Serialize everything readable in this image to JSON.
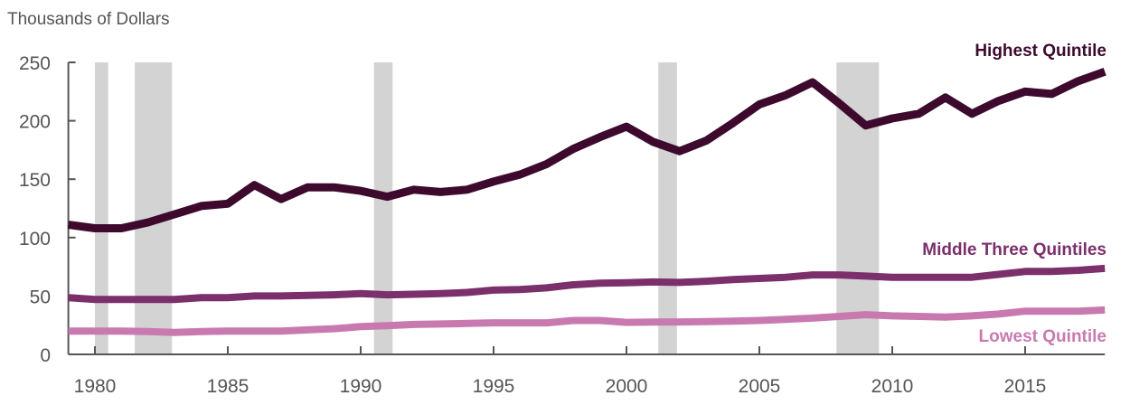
{
  "chart_data": {
    "type": "line",
    "ylabel": "Thousands of Dollars",
    "xlim": [
      1979,
      2018
    ],
    "ylim": [
      0,
      250
    ],
    "yticks": [
      0,
      50,
      100,
      150,
      200,
      250
    ],
    "xticks": [
      1980,
      1985,
      1990,
      1995,
      2000,
      2005,
      2010,
      2015
    ],
    "recessions": [
      [
        1980.0,
        1980.5
      ],
      [
        1981.5,
        1982.9
      ],
      [
        1990.5,
        1991.2
      ],
      [
        2001.2,
        2001.9
      ],
      [
        2007.9,
        2009.5
      ]
    ],
    "x": [
      1979,
      1980,
      1981,
      1982,
      1983,
      1984,
      1985,
      1986,
      1987,
      1988,
      1989,
      1990,
      1991,
      1992,
      1993,
      1994,
      1995,
      1996,
      1997,
      1998,
      1999,
      2000,
      2001,
      2002,
      2003,
      2004,
      2005,
      2006,
      2007,
      2008,
      2009,
      2010,
      2011,
      2012,
      2013,
      2014,
      2015,
      2016,
      2017,
      2018
    ],
    "series": [
      {
        "name": "Highest Quintile",
        "color": "#3d0a2e",
        "values": [
          111,
          108,
          108,
          113,
          120,
          127,
          129,
          145,
          133,
          143,
          143,
          140,
          135,
          141,
          139,
          141,
          148,
          154,
          163,
          176,
          186,
          195,
          182,
          174,
          183,
          198,
          214,
          222,
          233,
          215,
          196,
          202,
          206,
          220,
          206,
          217,
          225,
          223,
          234,
          242
        ]
      },
      {
        "name": "Middle Three Quintiles",
        "color": "#7b2f6b",
        "values": [
          48.6,
          47,
          47,
          47,
          47,
          48.6,
          48.6,
          50,
          50,
          50.5,
          51,
          52,
          51,
          51.5,
          52,
          53,
          55,
          55.5,
          57,
          59.6,
          61,
          61.4,
          62,
          61.6,
          62.6,
          64,
          65,
          66,
          68,
          68,
          67,
          66,
          66,
          66,
          66,
          68.5,
          71,
          71,
          72,
          73.6
        ]
      },
      {
        "name": "Lowest Quintile",
        "color": "#c87ab0",
        "values": [
          20,
          20,
          20,
          19.5,
          18.7,
          19.5,
          20,
          20,
          20,
          21,
          22,
          23.8,
          24.5,
          25.6,
          26,
          26.5,
          27,
          27,
          27,
          29,
          29,
          27.4,
          27.6,
          27.8,
          28,
          28.5,
          29,
          30,
          31,
          32.5,
          34,
          33,
          32.5,
          32,
          33,
          34.5,
          37,
          37,
          37,
          38
        ]
      }
    ],
    "legend": "inline-right"
  }
}
